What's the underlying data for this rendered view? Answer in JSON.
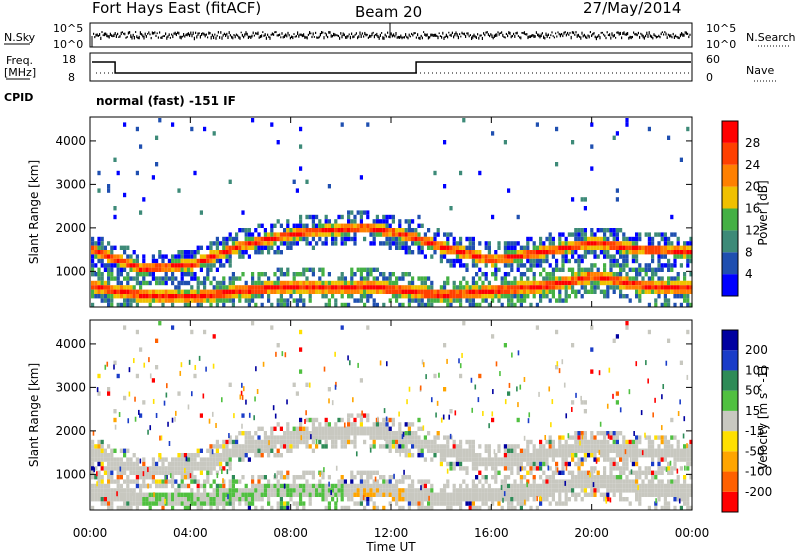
{
  "header": {
    "site": "Fort Hays East (fitACF)",
    "beam": "Beam 20",
    "date": "27/May/2014"
  },
  "noise_panel": {
    "left_label": "N.Sky",
    "right_label": "N.Search",
    "left_ticks": [
      "10^5",
      "10^0"
    ],
    "right_ticks": [
      "10^5",
      "10^0"
    ]
  },
  "freq_panel": {
    "left_label_1": "Freq.",
    "left_label_2": "[MHz]",
    "left_ticks": [
      "18",
      "8"
    ],
    "right_label": "Nave",
    "right_ticks": [
      "60",
      "0"
    ],
    "cpid_label": "CPID",
    "cpid_text": "normal (fast) -151 IF"
  },
  "x_axis": {
    "label": "Time UT",
    "ticks": [
      "00:00",
      "04:00",
      "08:00",
      "12:00",
      "16:00",
      "20:00",
      "00:00"
    ]
  },
  "colors": {
    "power": [
      "#0000ff",
      "#1f4fb0",
      "#3d8a78",
      "#44b044",
      "#f0c000",
      "#ff8000",
      "#ff4000",
      "#ff0000"
    ],
    "velocity": [
      "#ff0000",
      "#ff6000",
      "#ffa500",
      "#ffe000",
      "#c8c8c0",
      "#50c040",
      "#2e8b57",
      "#1a3cc8",
      "#0000a0"
    ],
    "gray": "#c8c8c0"
  },
  "chart_data": [
    {
      "type": "heatmap",
      "title": "Power",
      "xlabel": "Time UT",
      "ylabel": "Slant Range [km]",
      "xlim": [
        0,
        24
      ],
      "ylim": [
        180,
        4550
      ],
      "y_ticks": [
        "1000",
        "2000",
        "3000",
        "4000"
      ],
      "colorbar": {
        "label": "Power [dB]",
        "ticks": [
          "28",
          "24",
          "20",
          "16",
          "12",
          "8",
          "4"
        ],
        "range": [
          0,
          32
        ]
      },
      "features": [
        {
          "name": "upper band",
          "times": [
            0,
            2,
            4,
            6,
            8,
            9.5,
            11,
            12,
            13,
            14,
            16,
            18,
            20,
            22,
            24
          ],
          "ranges": [
            1550,
            1100,
            1200,
            1650,
            1900,
            2000,
            2050,
            1950,
            1800,
            1600,
            1300,
            1500,
            1700,
            1550,
            1500
          ]
        },
        {
          "name": "lower band",
          "times": [
            0,
            2,
            4,
            6,
            8,
            10,
            11,
            12.5,
            14,
            16,
            18,
            19,
            20,
            22,
            24
          ],
          "ranges": [
            700,
            500,
            450,
            600,
            700,
            650,
            700,
            600,
            500,
            600,
            700,
            800,
            950,
            700,
            650
          ]
        }
      ]
    },
    {
      "type": "heatmap",
      "title": "Velocity",
      "xlabel": "Time UT",
      "ylabel": "Slant Range [km]",
      "xlim": [
        0,
        24
      ],
      "ylim": [
        180,
        4550
      ],
      "y_ticks": [
        "1000",
        "2000",
        "3000",
        "4000"
      ],
      "colorbar": {
        "label": "Velocity [m s^-1]",
        "ticks": [
          "200",
          "100",
          "50",
          "15",
          "-15",
          "-50",
          "-100",
          "-200"
        ],
        "range": [
          -250,
          250
        ]
      }
    }
  ]
}
